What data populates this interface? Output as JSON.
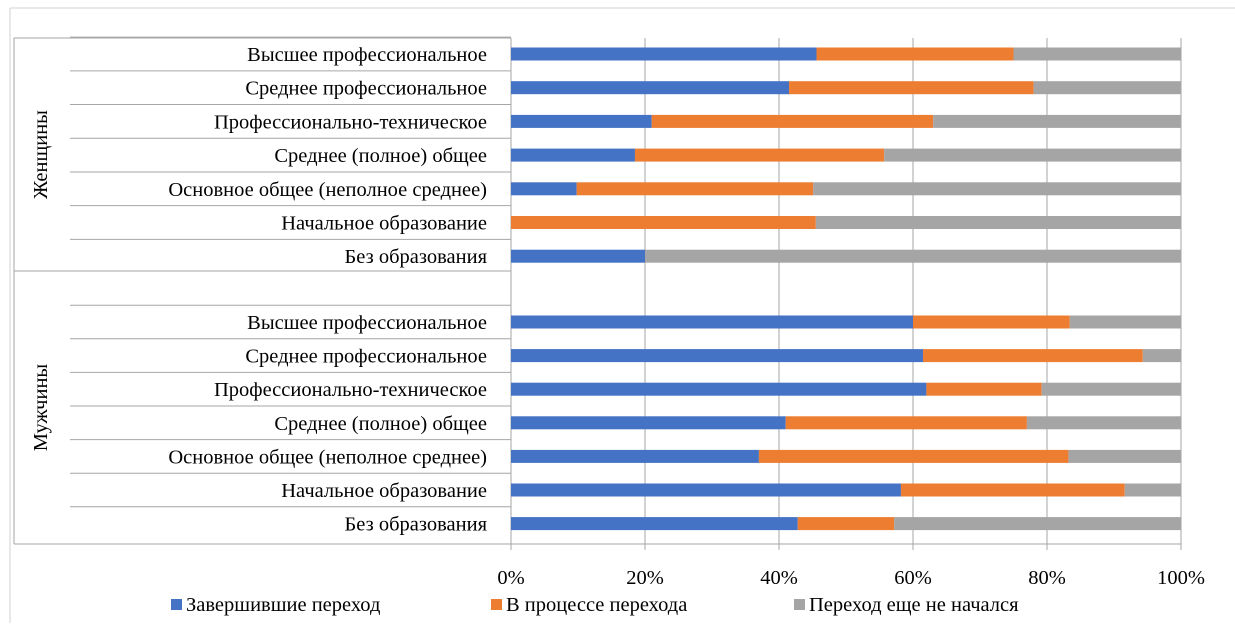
{
  "chart_data": {
    "type": "bar",
    "orientation": "horizontal",
    "stacked": true,
    "percent": true,
    "title": "",
    "xlabel": "",
    "ylabel": "",
    "xlim": [
      0,
      100
    ],
    "x_ticks": [
      "0%",
      "20%",
      "40%",
      "60%",
      "80%",
      "100%"
    ],
    "grid": true,
    "legend_position": "bottom",
    "groups": [
      {
        "name": "Женщины",
        "categories": [
          "Высшее профессиональное",
          "Среднее профессиональное",
          "Профессионально-техническое",
          "Среднее (полное) общее",
          "Основное общее (неполное среднее)",
          "Начальное образование",
          "Без образования"
        ],
        "series_values": [
          [
            45.6,
            29.4,
            25.0
          ],
          [
            41.5,
            36.5,
            22.0
          ],
          [
            21.0,
            42.0,
            37.0
          ],
          [
            18.5,
            37.2,
            44.3
          ],
          [
            9.8,
            35.3,
            54.9
          ],
          [
            0.0,
            45.5,
            54.5
          ],
          [
            20.0,
            0.0,
            80.0
          ]
        ]
      },
      {
        "name": "Мужчины",
        "categories": [
          "Высшее профессиональное",
          "Среднее профессиональное",
          "Профессионально-техническое",
          "Среднее (полное) общее",
          "Основное общее (неполное среднее)",
          "Начальное образование",
          "Без образования"
        ],
        "series_values": [
          [
            60.0,
            23.4,
            16.6
          ],
          [
            61.5,
            32.8,
            5.7
          ],
          [
            62.0,
            17.2,
            20.8
          ],
          [
            41.0,
            36.0,
            23.0
          ],
          [
            37.0,
            46.2,
            16.8
          ],
          [
            58.2,
            33.4,
            8.4
          ],
          [
            42.8,
            14.4,
            42.8
          ]
        ]
      }
    ],
    "series": [
      {
        "name": "Завершившие переход",
        "color": "#4472C4"
      },
      {
        "name": "В процессе перехода",
        "color": "#ED7D31"
      },
      {
        "name": "Переход еще не начался",
        "color": "#A5A5A5"
      }
    ]
  }
}
